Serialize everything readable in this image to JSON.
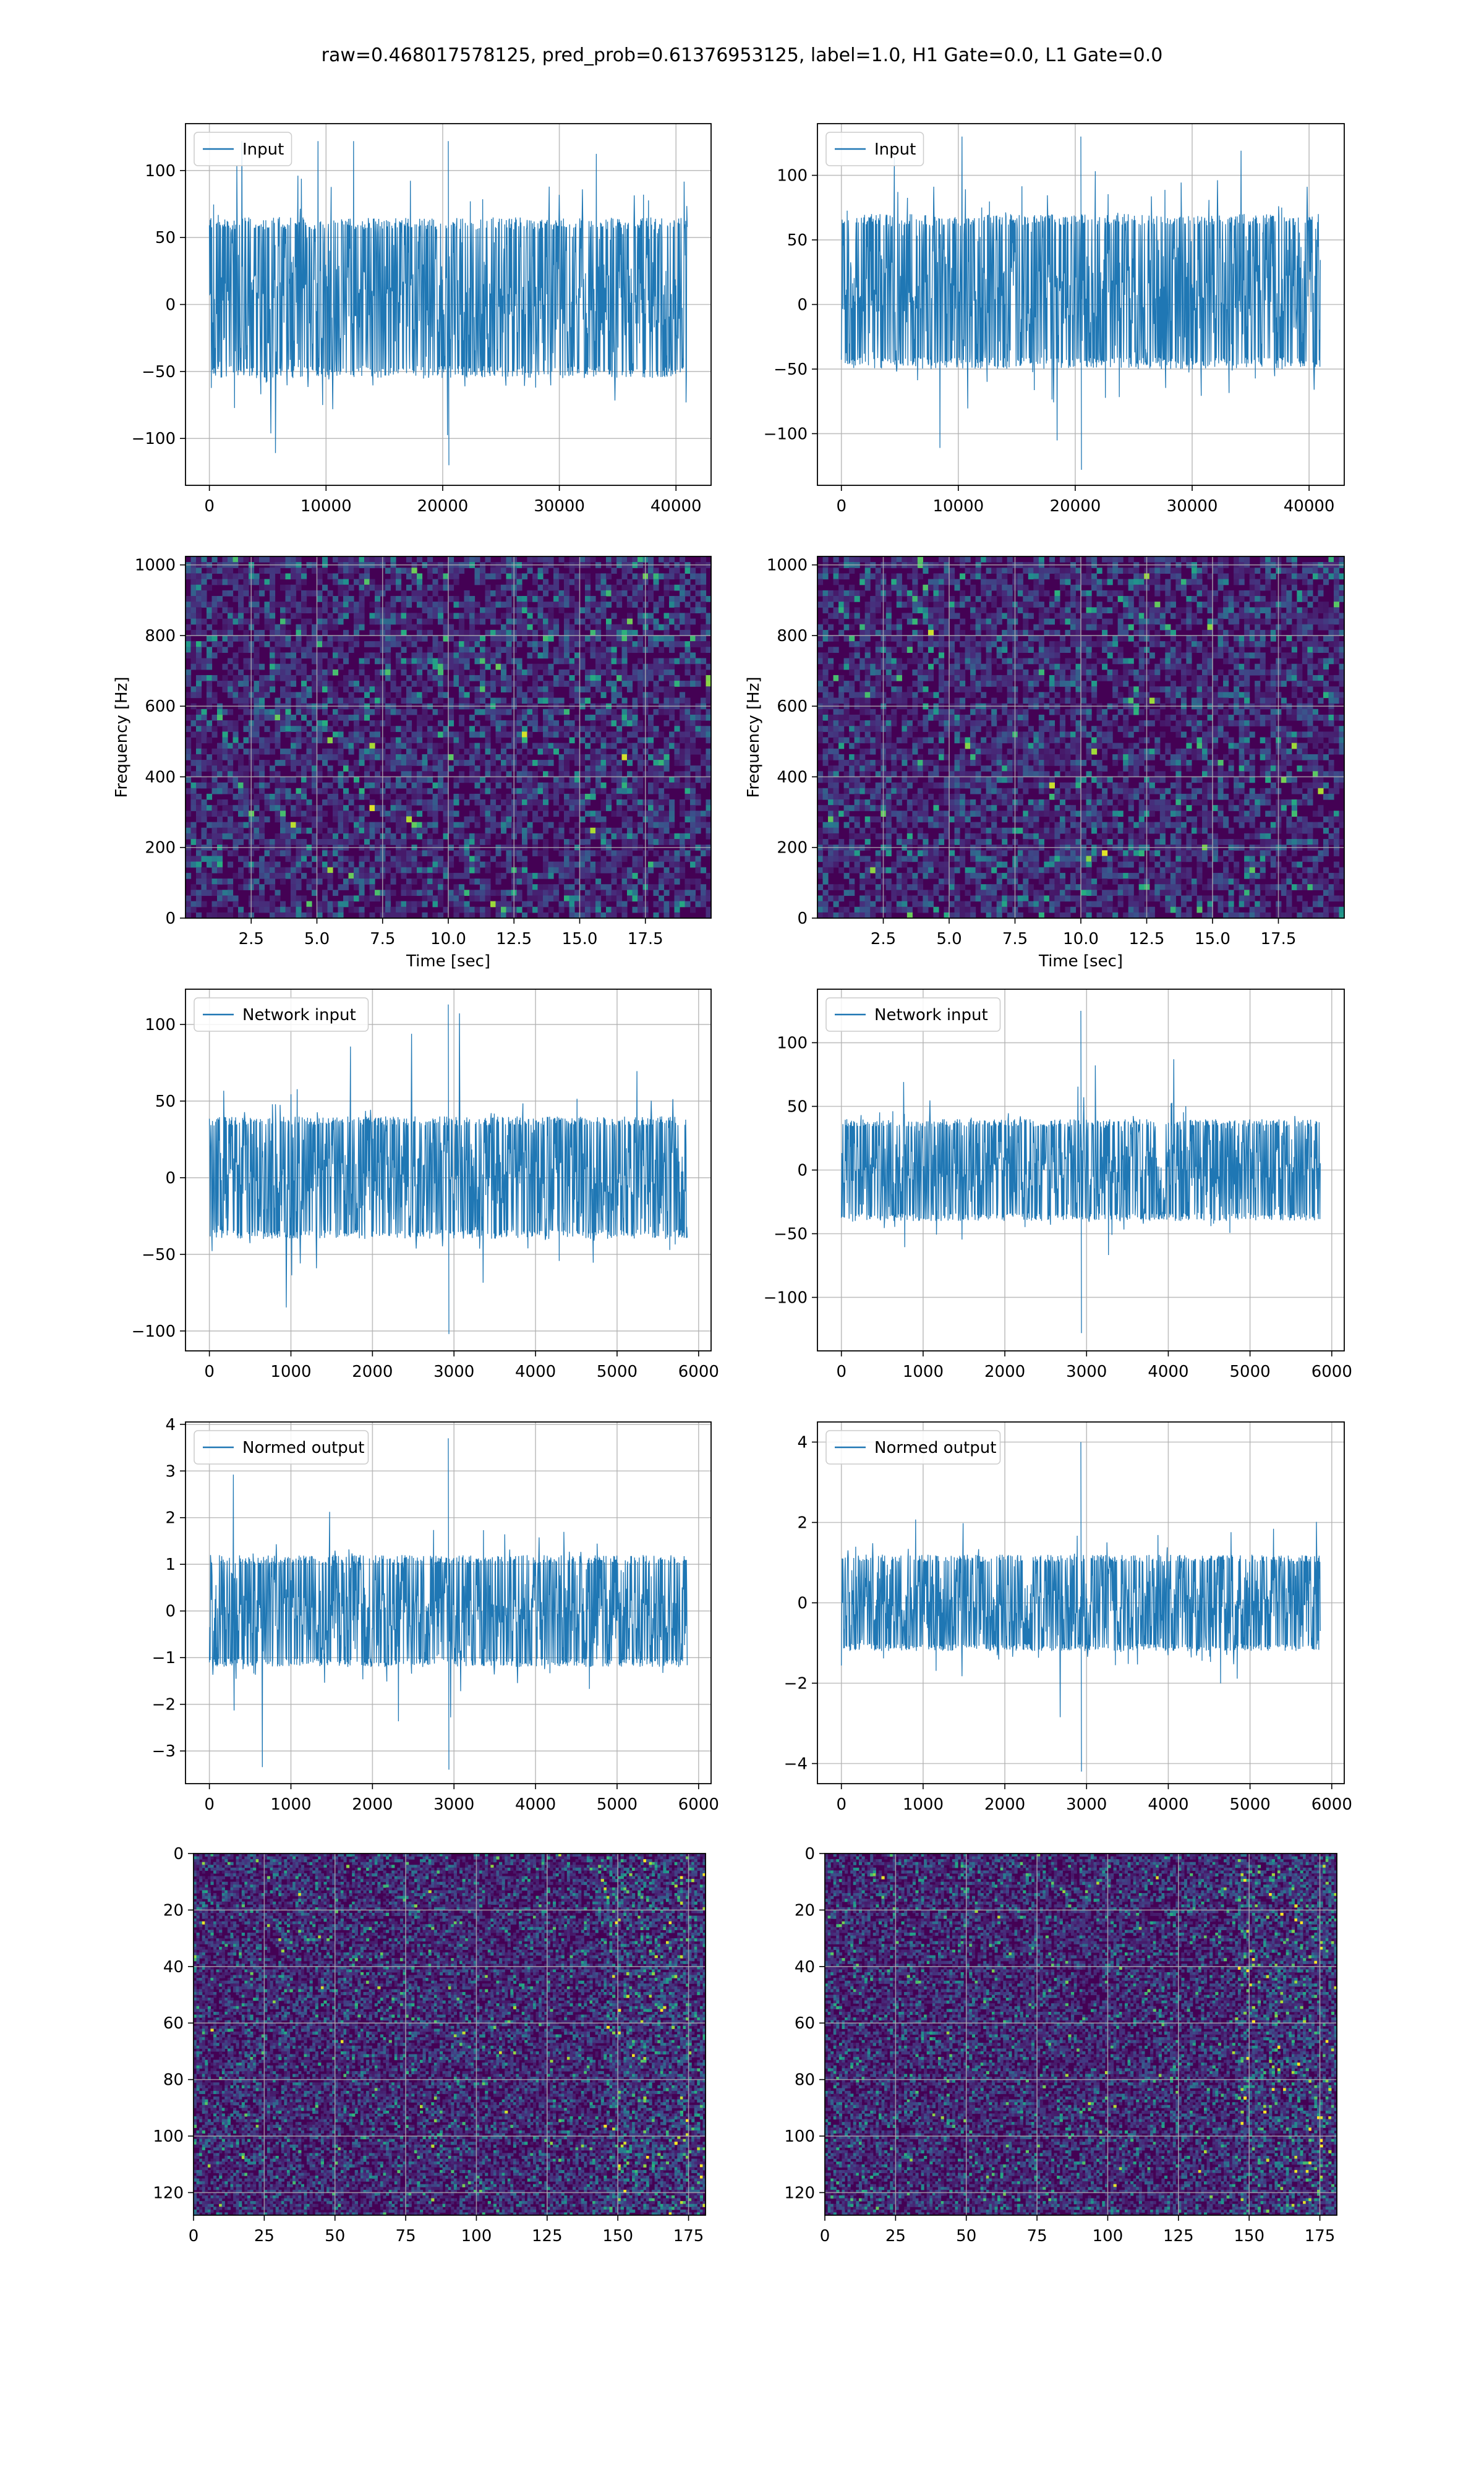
{
  "figure": {
    "suptitle": "raw=0.468017578125, pred_prob=0.61376953125, label=1.0, H1 Gate=0.0, L1 Gate=0.0"
  },
  "colors": {
    "line": "#1f77b4",
    "grid": "#b0b0b0",
    "axes": "#000000",
    "viridis_low": "#440154",
    "viridis_mid": "#21918c",
    "viridis_high": "#fde725"
  },
  "chart_data": [
    {
      "type": "line",
      "subplot": "row1-left",
      "legend": [
        "Input"
      ],
      "legend_loc": "upper-left",
      "x_range": [
        0,
        40960
      ],
      "xlim": [
        -2048,
        43008
      ],
      "ylim": [
        -135,
        135
      ],
      "xticks": [
        0,
        10000,
        20000,
        30000,
        40000
      ],
      "yticks": [
        -100,
        -50,
        0,
        50,
        100
      ],
      "envelope": {
        "core_min": -55,
        "core_max": 65,
        "peak_min": -120,
        "peak_max": 122
      },
      "grid": true
    },
    {
      "type": "line",
      "subplot": "row1-right",
      "legend": [
        "Input"
      ],
      "legend_loc": "upper-left",
      "x_range": [
        0,
        40960
      ],
      "xlim": [
        -2048,
        43008
      ],
      "ylim": [
        -140,
        140
      ],
      "xticks": [
        0,
        10000,
        20000,
        30000,
        40000
      ],
      "yticks": [
        -100,
        -50,
        0,
        50,
        100
      ],
      "envelope": {
        "core_min": -50,
        "core_max": 70,
        "peak_min": -128,
        "peak_max": 130
      },
      "grid": true
    },
    {
      "type": "heatmap",
      "subplot": "row2-left",
      "xlabel": "Time [sec]",
      "ylabel": "Frequency [Hz]",
      "xlim": [
        0,
        20
      ],
      "ylim": [
        0,
        1024
      ],
      "xticks": [
        2.5,
        5.0,
        7.5,
        10.0,
        12.5,
        15.0,
        17.5
      ],
      "yticks": [
        0,
        200,
        400,
        600,
        800,
        1000
      ],
      "colormap": "viridis",
      "grid": true
    },
    {
      "type": "heatmap",
      "subplot": "row2-right",
      "xlabel": "Time [sec]",
      "ylabel": "Frequency [Hz]",
      "xlim": [
        0,
        20
      ],
      "ylim": [
        0,
        1024
      ],
      "xticks": [
        2.5,
        5.0,
        7.5,
        10.0,
        12.5,
        15.0,
        17.5
      ],
      "yticks": [
        0,
        200,
        400,
        600,
        800,
        1000
      ],
      "colormap": "viridis",
      "grid": true
    },
    {
      "type": "line",
      "subplot": "row3-left",
      "legend": [
        "Network input"
      ],
      "legend_loc": "upper-left",
      "x_range": [
        0,
        5860
      ],
      "xlim": [
        -293,
        6153
      ],
      "ylim": [
        -113,
        123
      ],
      "xticks": [
        0,
        1000,
        2000,
        3000,
        4000,
        5000,
        6000
      ],
      "yticks": [
        -100,
        -50,
        0,
        50,
        100
      ],
      "envelope": {
        "core_min": -40,
        "core_max": 40,
        "peak_min": -102,
        "peak_max": 113
      },
      "grid": true
    },
    {
      "type": "line",
      "subplot": "row3-right",
      "legend": [
        "Network input"
      ],
      "legend_loc": "upper-left",
      "x_range": [
        0,
        5860
      ],
      "xlim": [
        -293,
        6153
      ],
      "ylim": [
        -142,
        142
      ],
      "xticks": [
        0,
        1000,
        2000,
        3000,
        4000,
        5000,
        6000
      ],
      "yticks": [
        -100,
        -50,
        0,
        50,
        100
      ],
      "envelope": {
        "core_min": -40,
        "core_max": 40,
        "peak_min": -128,
        "peak_max": 125
      },
      "grid": true
    },
    {
      "type": "line",
      "subplot": "row4-left",
      "legend": [
        "Normed output"
      ],
      "legend_loc": "upper-left",
      "x_range": [
        0,
        5860
      ],
      "xlim": [
        -293,
        6153
      ],
      "ylim": [
        -3.7,
        4.05
      ],
      "xticks": [
        0,
        1000,
        2000,
        3000,
        4000,
        5000,
        6000
      ],
      "yticks": [
        -3,
        -2,
        -1,
        0,
        1,
        2,
        3,
        4
      ],
      "envelope": {
        "core_min": -1.2,
        "core_max": 1.2,
        "peak_min": -3.4,
        "peak_max": 3.7
      },
      "grid": true
    },
    {
      "type": "line",
      "subplot": "row4-right",
      "legend": [
        "Normed output"
      ],
      "legend_loc": "upper-left",
      "x_range": [
        0,
        5860
      ],
      "xlim": [
        -293,
        6153
      ],
      "ylim": [
        -4.5,
        4.5
      ],
      "xticks": [
        0,
        1000,
        2000,
        3000,
        4000,
        5000,
        6000
      ],
      "yticks": [
        -4,
        -2,
        0,
        2,
        4
      ],
      "envelope": {
        "core_min": -1.2,
        "core_max": 1.2,
        "peak_min": -4.2,
        "peak_max": 4.0
      },
      "grid": true
    },
    {
      "type": "heatmap",
      "subplot": "row5-left",
      "xlim": [
        0,
        181
      ],
      "ylim": [
        128,
        0
      ],
      "xticks": [
        0,
        25,
        50,
        75,
        100,
        125,
        150,
        175
      ],
      "yticks": [
        0,
        20,
        40,
        60,
        80,
        100,
        120
      ],
      "colormap": "viridis",
      "grid": true
    },
    {
      "type": "heatmap",
      "subplot": "row5-right",
      "xlim": [
        0,
        181
      ],
      "ylim": [
        128,
        0
      ],
      "xticks": [
        0,
        25,
        50,
        75,
        100,
        125,
        150,
        175
      ],
      "yticks": [
        0,
        20,
        40,
        60,
        80,
        100,
        120
      ],
      "colormap": "viridis",
      "grid": true
    }
  ]
}
